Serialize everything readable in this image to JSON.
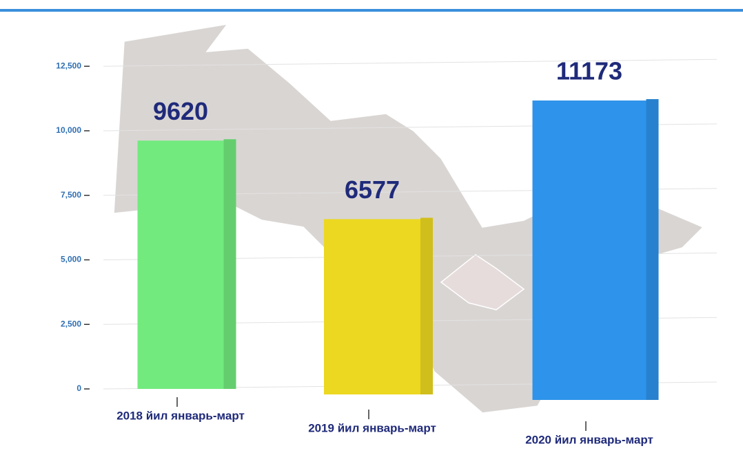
{
  "chart_data": {
    "type": "bar",
    "categories": [
      "2018 йил январь-март",
      "2019 йил январь-март",
      "2020 йил январь-март"
    ],
    "values": [
      9620,
      6577,
      11173
    ],
    "colors": [
      "#72ea7e",
      "#ecd820",
      "#2e93ea"
    ],
    "ylim": [
      0,
      14000
    ],
    "yticks": [
      0,
      {
        "value": 2500,
        "label": "2,500"
      },
      {
        "value": 5000,
        "label": "5,000"
      },
      {
        "value": 7500,
        "label": "7,500"
      },
      {
        "value": 10000,
        "label": "10,000"
      },
      {
        "value": 12500,
        "label": "12,500"
      }
    ],
    "grid": true
  }
}
